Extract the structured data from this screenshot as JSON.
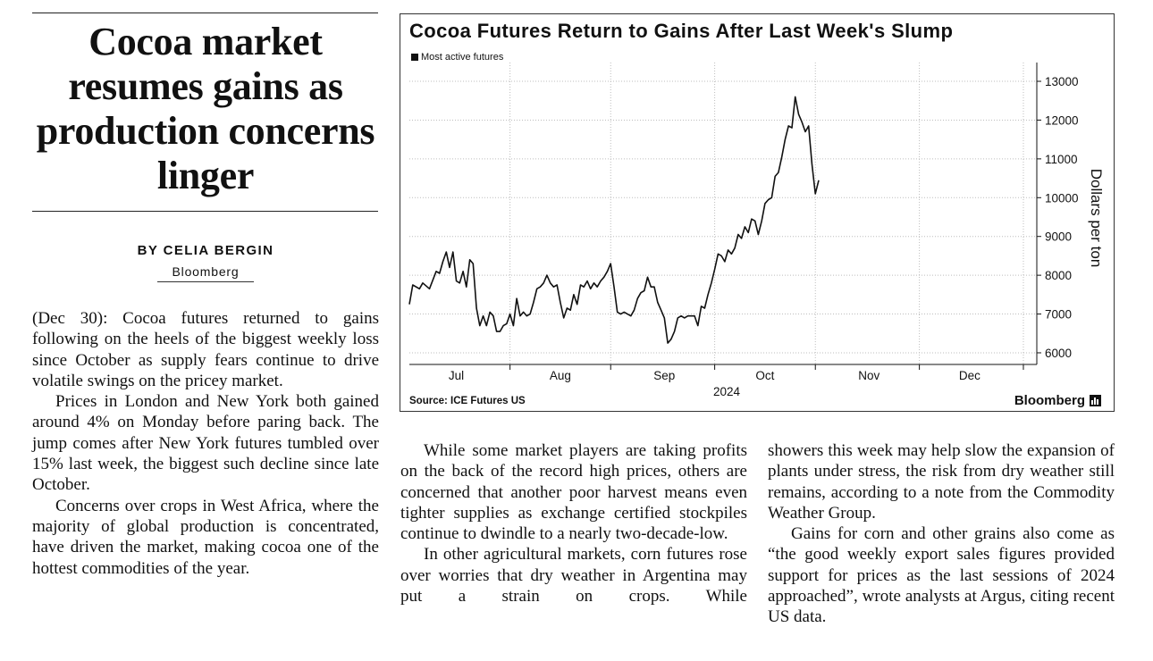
{
  "article": {
    "headline": "Cocoa market resumes gains as production concerns linger",
    "byline": "BY CELIA BERGIN",
    "source": "Bloomberg",
    "paragraphs": [
      "(Dec 30): Cocoa futures returned to gains following on the heels of the biggest weekly loss since October as supply fears continue to drive volatile swings on the pricey market.",
      "Prices in London and New York both gained around 4% on Monday before paring back. The jump comes after New York futures tumbled over 15% last week, the biggest such decline since late October.",
      "Concerns over crops in West Africa, where the majority of global production is concentrated, have driven the market, making cocoa one of the hottest commodities of the year.",
      "While some market players are taking profits on the back of the record high prices, others are concerned that another poor harvest means even tighter supplies as exchange certified stockpiles continue to dwindle to a nearly two-decade-low.",
      "In other agricultural markets, corn futures rose over worries that dry weather in Argentina may put a strain on crops. While showers this week may help slow the expansion of plants under stress, the risk from dry weather still remains, according to a note from the Commodity Weather Group.",
      "Gains for corn and other grains also come as “the good weekly export sales figures provided support for prices as the last sessions of 2024 approached”, wrote analysts at Argus, citing recent US data."
    ]
  },
  "chart_data": {
    "type": "line",
    "title": "Cocoa Futures Return to Gains After Last Week's Slump",
    "legend": "Most active futures",
    "ylabel": "Dollars per ton",
    "xlabel": "2024",
    "source": "Source: ICE Futures US",
    "brand": "Bloomberg",
    "ylim": [
      5700,
      13300
    ],
    "yticks": [
      6000,
      7000,
      8000,
      9000,
      10000,
      11000,
      12000,
      13000
    ],
    "xticks": [
      {
        "label": "Jul",
        "x": 10
      },
      {
        "label": "Aug",
        "x": 41
      },
      {
        "label": "Sep",
        "x": 72
      },
      {
        "label": "Oct",
        "x": 102
      },
      {
        "label": "Nov",
        "x": 133
      },
      {
        "label": "Dec",
        "x": 163
      }
    ],
    "xlim": [
      -4,
      183
    ],
    "grid": true,
    "series": [
      {
        "color": "#111111",
        "points": [
          [
            -4,
            7250
          ],
          [
            -3,
            7750
          ],
          [
            -1,
            7650
          ],
          [
            0,
            7800
          ],
          [
            2,
            7650
          ],
          [
            4,
            8100
          ],
          [
            5,
            8050
          ],
          [
            6,
            8350
          ],
          [
            7,
            8600
          ],
          [
            8,
            8200
          ],
          [
            9,
            8600
          ],
          [
            10,
            7850
          ],
          [
            11,
            7800
          ],
          [
            12,
            8100
          ],
          [
            13,
            7700
          ],
          [
            14,
            8400
          ],
          [
            15,
            8300
          ],
          [
            16,
            7150
          ],
          [
            17,
            6700
          ],
          [
            18,
            6950
          ],
          [
            19,
            6700
          ],
          [
            20,
            7050
          ],
          [
            21,
            6950
          ],
          [
            22,
            6550
          ],
          [
            23,
            6550
          ],
          [
            24,
            6700
          ],
          [
            25,
            6750
          ],
          [
            26,
            7000
          ],
          [
            27,
            6700
          ],
          [
            28,
            7400
          ],
          [
            29,
            6950
          ],
          [
            30,
            7050
          ],
          [
            31,
            6950
          ],
          [
            32,
            7000
          ],
          [
            33,
            7300
          ],
          [
            34,
            7650
          ],
          [
            35,
            7700
          ],
          [
            36,
            7800
          ],
          [
            37,
            8000
          ],
          [
            38,
            7800
          ],
          [
            39,
            7700
          ],
          [
            40,
            7750
          ],
          [
            41,
            7300
          ],
          [
            42,
            6900
          ],
          [
            43,
            7150
          ],
          [
            44,
            7100
          ],
          [
            45,
            7500
          ],
          [
            46,
            7250
          ],
          [
            47,
            7750
          ],
          [
            48,
            7700
          ],
          [
            49,
            7850
          ],
          [
            50,
            7650
          ],
          [
            51,
            7800
          ],
          [
            52,
            7700
          ],
          [
            53,
            7850
          ],
          [
            54,
            7950
          ],
          [
            55,
            8100
          ],
          [
            56,
            8300
          ],
          [
            57,
            7700
          ],
          [
            58,
            7050
          ],
          [
            59,
            7000
          ],
          [
            60,
            7050
          ],
          [
            61,
            7000
          ],
          [
            62,
            6950
          ],
          [
            63,
            7100
          ],
          [
            64,
            7400
          ],
          [
            65,
            7550
          ],
          [
            66,
            7600
          ],
          [
            67,
            7950
          ],
          [
            68,
            7700
          ],
          [
            69,
            7700
          ],
          [
            70,
            7300
          ],
          [
            71,
            7100
          ],
          [
            72,
            6900
          ],
          [
            73,
            6250
          ],
          [
            74,
            6350
          ],
          [
            75,
            6550
          ],
          [
            76,
            6900
          ],
          [
            77,
            6950
          ],
          [
            78,
            6900
          ],
          [
            79,
            6950
          ],
          [
            80,
            6950
          ],
          [
            81,
            6950
          ],
          [
            82,
            6700
          ],
          [
            83,
            7200
          ],
          [
            84,
            7150
          ],
          [
            85,
            7500
          ],
          [
            86,
            7800
          ],
          [
            87,
            8150
          ],
          [
            88,
            8550
          ],
          [
            89,
            8500
          ],
          [
            90,
            8350
          ],
          [
            91,
            8650
          ],
          [
            92,
            8550
          ],
          [
            93,
            8700
          ],
          [
            94,
            9050
          ],
          [
            95,
            8950
          ],
          [
            96,
            9250
          ],
          [
            97,
            9100
          ],
          [
            98,
            9450
          ],
          [
            99,
            9400
          ],
          [
            100,
            9050
          ],
          [
            101,
            9400
          ],
          [
            102,
            9850
          ],
          [
            103,
            9950
          ],
          [
            104,
            10000
          ],
          [
            105,
            10550
          ],
          [
            106,
            10650
          ],
          [
            107,
            11050
          ],
          [
            108,
            11500
          ],
          [
            109,
            11850
          ],
          [
            110,
            11800
          ],
          [
            111,
            12600
          ],
          [
            112,
            12150
          ],
          [
            113,
            11950
          ],
          [
            114,
            11700
          ],
          [
            115,
            11850
          ],
          [
            116,
            10850
          ],
          [
            117,
            10100
          ],
          [
            118,
            10450
          ]
        ]
      }
    ]
  }
}
